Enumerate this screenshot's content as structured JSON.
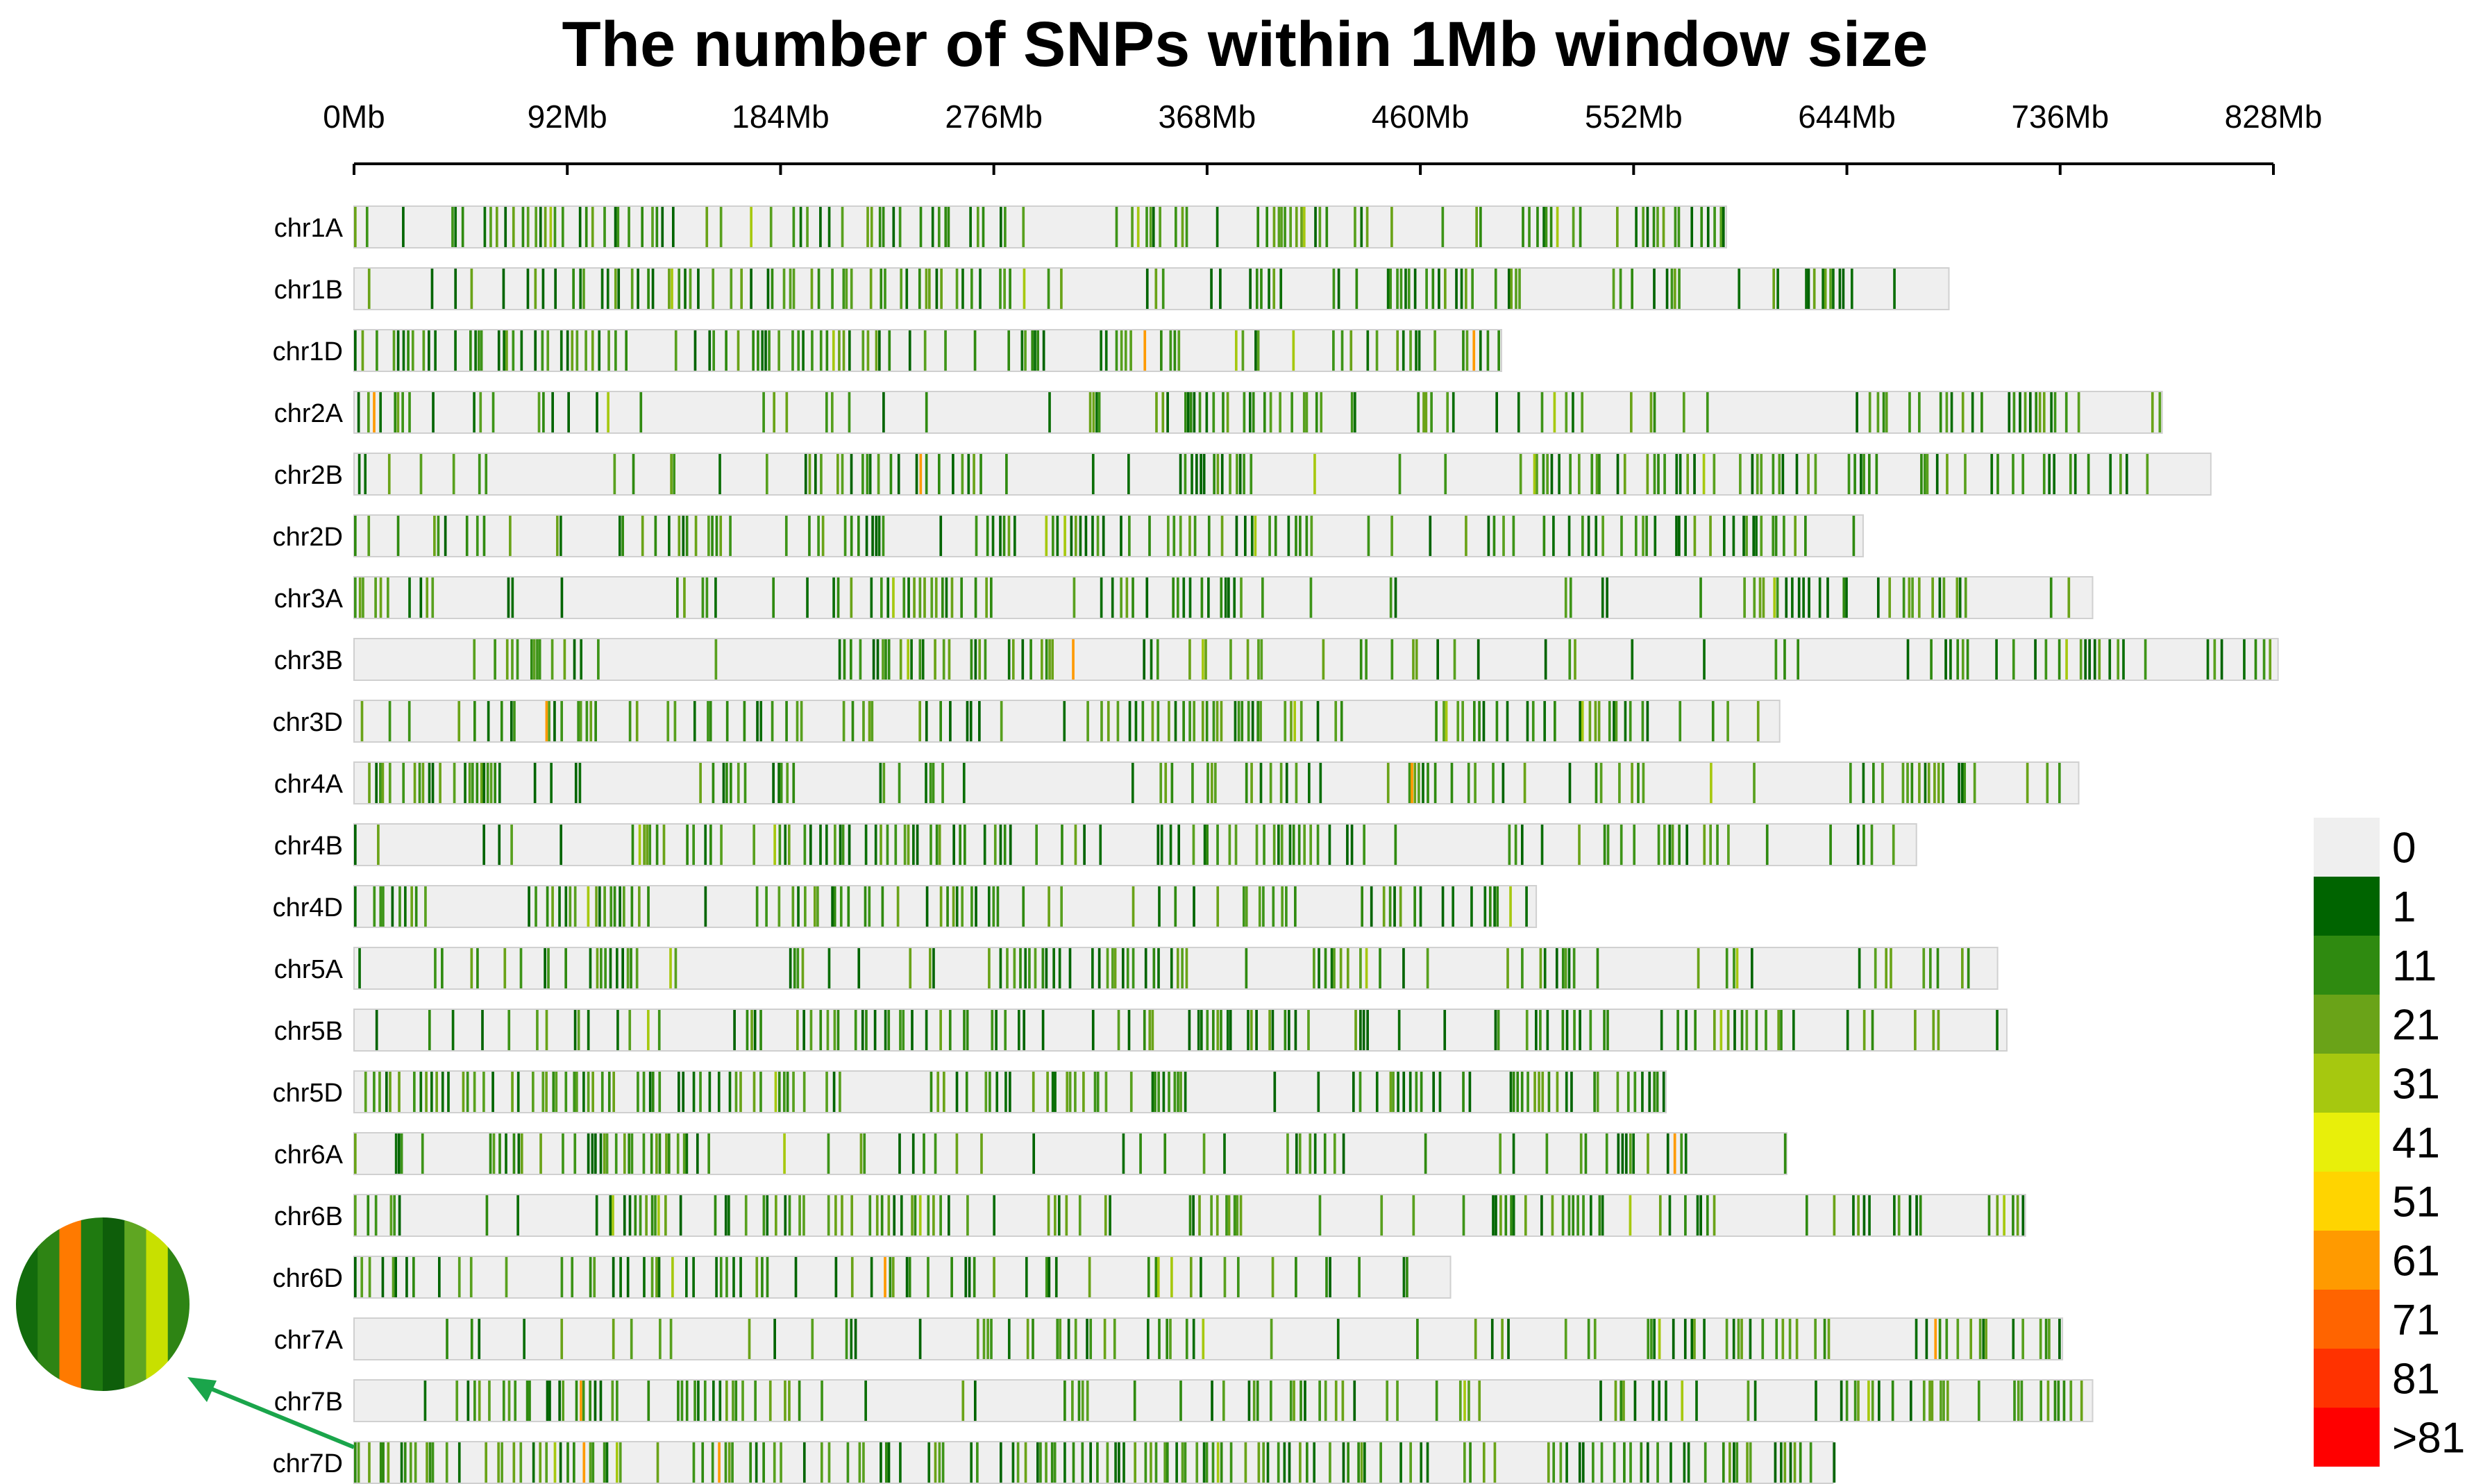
{
  "chart_data": {
    "type": "heatmap",
    "title": "The number of SNPs within 1Mb window size",
    "xaxis": {
      "unit": "Mb",
      "range": [
        0,
        828
      ],
      "tick_values": [
        0,
        92,
        184,
        276,
        368,
        460,
        552,
        644,
        736,
        828
      ],
      "tick_labels": [
        "0Mb",
        "92Mb",
        "184Mb",
        "276Mb",
        "368Mb",
        "460Mb",
        "552Mb",
        "644Mb",
        "736Mb",
        "828Mb"
      ]
    },
    "chromosomes": [
      {
        "name": "chr1A",
        "length": 592,
        "density": 0.5
      },
      {
        "name": "chr1B",
        "length": 688,
        "density": 0.5
      },
      {
        "name": "chr1D",
        "length": 495,
        "density": 0.68
      },
      {
        "name": "chr2A",
        "length": 780,
        "density": 0.45
      },
      {
        "name": "chr2B",
        "length": 801,
        "density": 0.48
      },
      {
        "name": "chr2D",
        "length": 651,
        "density": 0.68
      },
      {
        "name": "chr3A",
        "length": 750,
        "density": 0.38
      },
      {
        "name": "chr3B",
        "length": 830,
        "density": 0.48
      },
      {
        "name": "chr3D",
        "length": 615,
        "density": 0.7
      },
      {
        "name": "chr4A",
        "length": 744,
        "density": 0.4
      },
      {
        "name": "chr4B",
        "length": 674,
        "density": 0.38
      },
      {
        "name": "chr4D",
        "length": 510,
        "density": 0.68
      },
      {
        "name": "chr5A",
        "length": 709,
        "density": 0.4
      },
      {
        "name": "chr5B",
        "length": 713,
        "density": 0.48
      },
      {
        "name": "chr5D",
        "length": 566,
        "density": 0.66
      },
      {
        "name": "chr6A",
        "length": 618,
        "density": 0.4
      },
      {
        "name": "chr6B",
        "length": 721,
        "density": 0.52
      },
      {
        "name": "chr6D",
        "length": 473,
        "density": 0.64
      },
      {
        "name": "chr7A",
        "length": 737,
        "density": 0.48
      },
      {
        "name": "chr7B",
        "length": 750,
        "density": 0.48
      },
      {
        "name": "chr7D",
        "length": 638,
        "density": 0.66
      }
    ],
    "legend": {
      "labels": [
        "0",
        "1",
        "11",
        "21",
        "31",
        "41",
        "51",
        "61",
        "71",
        "81",
        ">81"
      ],
      "colors": [
        "#efefef",
        "#006400",
        "#2f8a10",
        "#6aa318",
        "#a6c80f",
        "#e8ef0a",
        "#ffd400",
        "#ff9a00",
        "#ff6400",
        "#ff3200",
        "#ff0000"
      ],
      "position": "right"
    },
    "inset": {
      "description_color_stripes": [
        "#126b0c",
        "#2e8414",
        "#ff7a00",
        "#1f7a10",
        "#0e5e0a",
        "#5fa622",
        "#c8e000",
        "#2e8414"
      ]
    }
  }
}
